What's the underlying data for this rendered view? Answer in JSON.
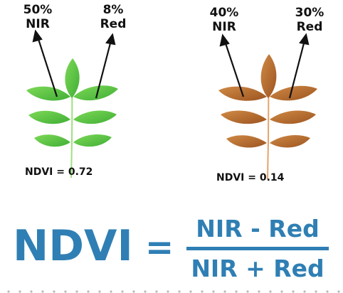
{
  "healthy_leaf": {
    "nir_percent": "50%",
    "nir_label": "NIR",
    "red_percent": "8%",
    "red_label": "Red",
    "ndvi_text": "NDVI = 0.72",
    "color": "#5fc94a"
  },
  "stressed_leaf": {
    "nir_percent": "40%",
    "nir_label": "NIR",
    "red_percent": "30%",
    "red_label": "Red",
    "ndvi_text": "NDVI = 0.14",
    "color": "#b8692a"
  },
  "formula": {
    "lhs": "NDVI",
    "equals": "=",
    "numerator": "NIR - Red",
    "denominator": "NIR + Red",
    "color": "#2f7fb4"
  }
}
